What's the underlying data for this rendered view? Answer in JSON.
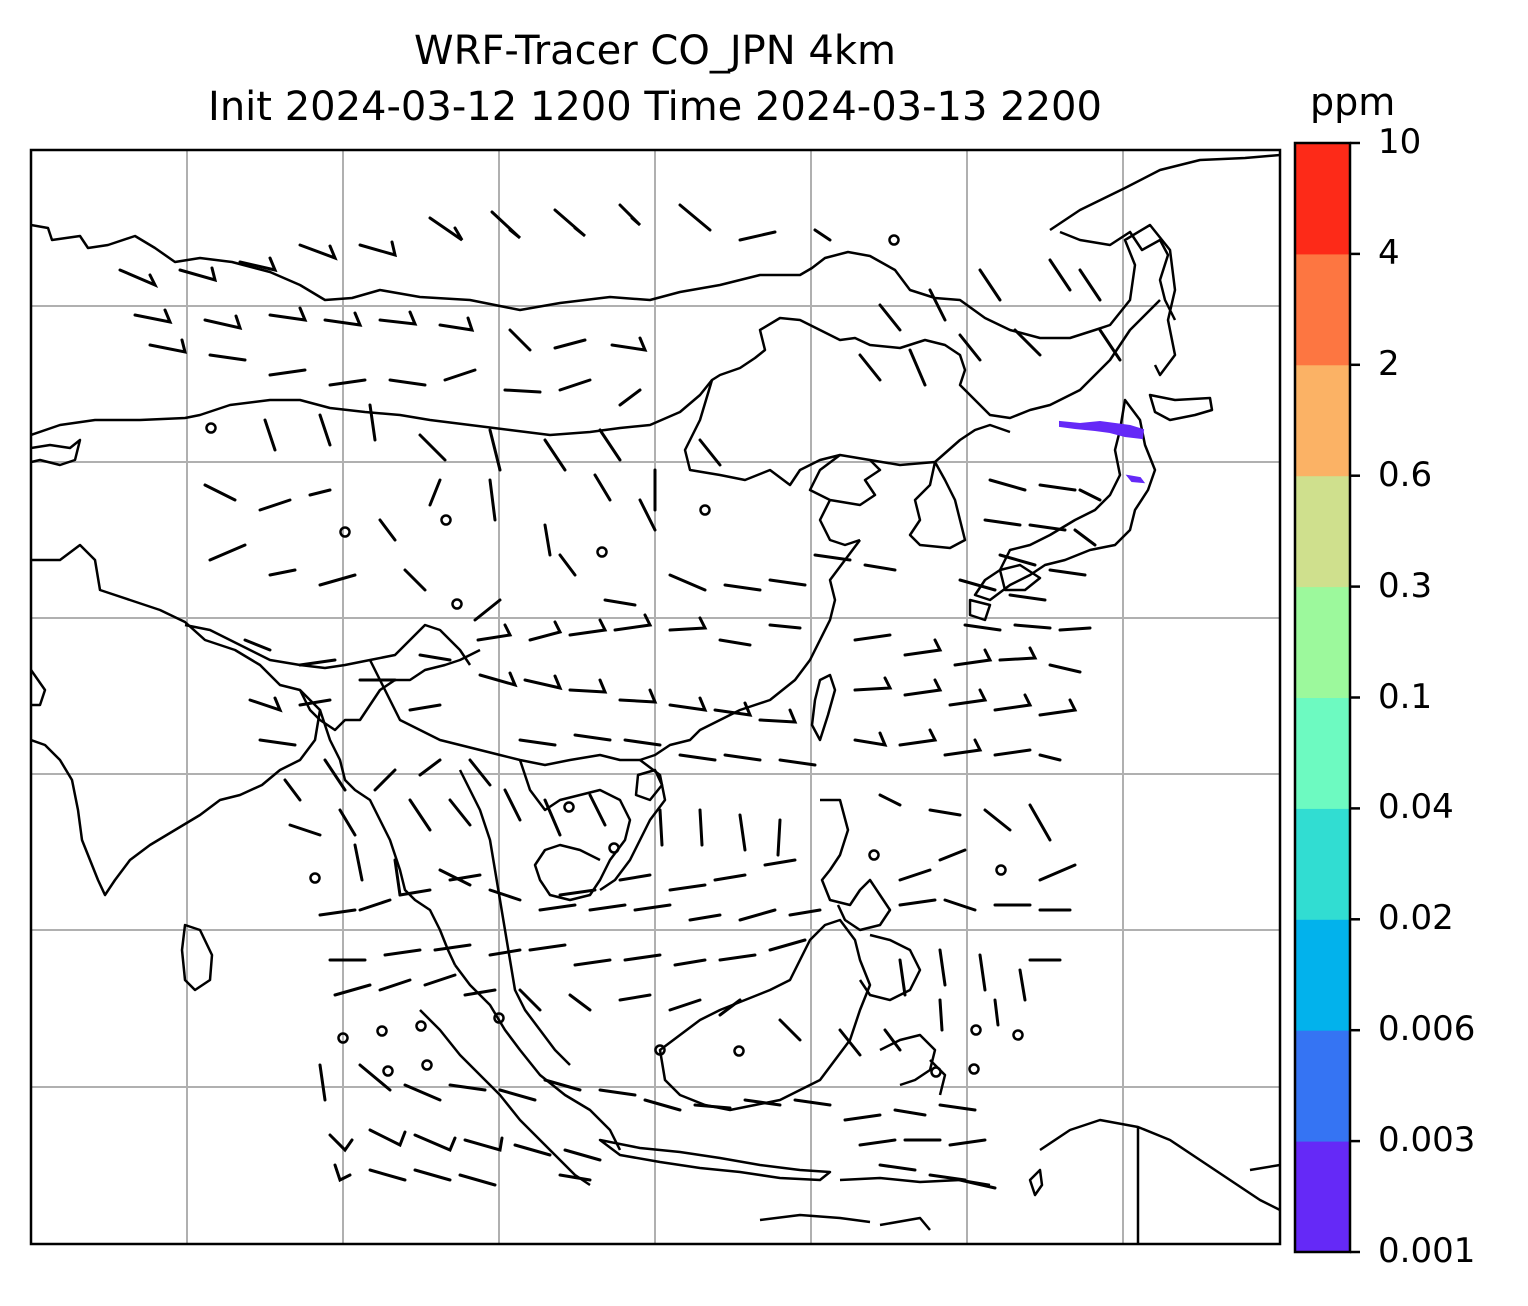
{
  "title": {
    "line1": "WRF-Tracer CO_JPN 4km",
    "line2": "Init 2024-03-12 1200 Time 2024-03-13 2200"
  },
  "colorbar": {
    "unit": "ppm",
    "levels": [
      "0.001",
      "0.003",
      "0.006",
      "0.02",
      "0.04",
      "0.1",
      "0.3",
      "0.6",
      "2",
      "4",
      "10"
    ],
    "colors": [
      "#6529f7",
      "#3574f3",
      "#02b2ec",
      "#31ddd2",
      "#6dfac1",
      "#9cf99c",
      "#cfe08d",
      "#fbb265",
      "#fd7641",
      "#fd2a18"
    ]
  },
  "map": {
    "grid_color": "#b0b0b0",
    "coastline_color": "#000000",
    "tracer_plume_color": "#6529f7",
    "wind_barbs": "black"
  }
}
